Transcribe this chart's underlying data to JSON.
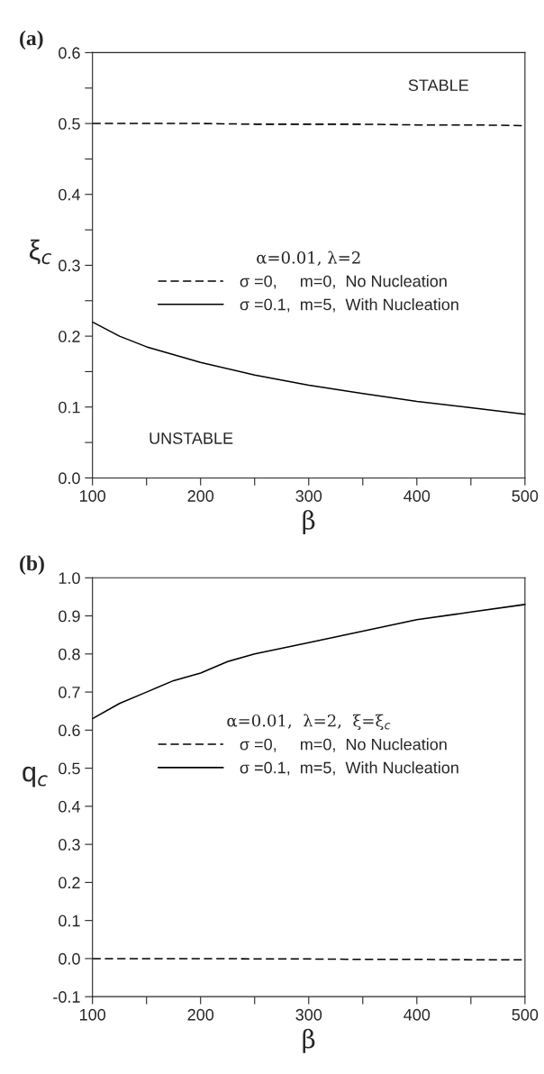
{
  "chart_data": [
    {
      "type": "line",
      "title": "(a)",
      "xlabel": "β",
      "ylabel": "ξ$_{c}$",
      "legend_title": "α=0.01, λ=2",
      "legend": "center",
      "grid": false,
      "x": [
        100,
        125,
        150,
        200,
        250,
        300,
        350,
        400,
        450,
        500
      ],
      "series": [
        {
          "name": "σ =0,     m=0,  No Nucleation",
          "color": "#000000",
          "line_style": "dashed",
          "values": [
            0.5,
            0.5,
            0.5,
            0.5,
            0.499,
            0.499,
            0.499,
            0.498,
            0.498,
            0.497
          ]
        },
        {
          "name": "σ =0.1,  m=5,  With Nucleation",
          "color": "#000000",
          "line_style": "solid",
          "values": [
            0.22,
            0.2,
            0.185,
            0.163,
            0.145,
            0.131,
            0.119,
            0.108,
            0.099,
            0.09
          ]
        }
      ],
      "xlim": [
        100,
        500
      ],
      "ylim": [
        0.0,
        0.6
      ],
      "xticks": [
        100,
        {
          "value": 150,
          "label": null
        },
        200,
        {
          "value": 250,
          "label": null
        },
        300,
        {
          "value": 350,
          "label": null
        },
        400,
        {
          "value": 450,
          "label": null
        },
        500
      ],
      "yticks": [
        {
          "value": 0.0,
          "label": "0.0"
        },
        {
          "value": 0.05,
          "label": null
        },
        0.1,
        {
          "value": 0.15,
          "label": null
        },
        0.2,
        {
          "value": 0.25,
          "label": null
        },
        0.3,
        {
          "value": 0.35,
          "label": null
        },
        0.4,
        {
          "value": 0.45,
          "label": null
        },
        0.5,
        {
          "value": 0.55,
          "label": null
        },
        0.6
      ],
      "annotations": [
        "STABLE",
        "UNSTABLE"
      ]
    },
    {
      "type": "line",
      "title": "(b)",
      "xlabel": "β",
      "ylabel": "q$_{c}$",
      "legend_title": "α=0.01,  λ=2,  ξ=ξ$_{c}$",
      "legend": "center",
      "grid": false,
      "x": [
        100,
        125,
        150,
        175,
        200,
        225,
        250,
        300,
        350,
        400,
        450,
        500
      ],
      "series": [
        {
          "name": "σ =0,     m=0,  No Nucleation",
          "color": "#000000",
          "line_style": "dashed",
          "values": [
            0.0,
            0.0,
            0.0,
            0.0,
            0.0,
            0.0,
            -0.001,
            -0.001,
            -0.002,
            -0.002,
            -0.003,
            -0.003
          ]
        },
        {
          "name": "σ =0.1,  m=5,  With Nucleation",
          "color": "#000000",
          "line_style": "solid",
          "values": [
            0.63,
            0.67,
            0.7,
            0.73,
            0.75,
            0.78,
            0.8,
            0.83,
            0.86,
            0.89,
            0.91,
            0.93
          ]
        }
      ],
      "xlim": [
        100,
        500
      ],
      "ylim": [
        -0.1,
        1.0
      ],
      "xticks": [
        100,
        {
          "value": 150,
          "label": null
        },
        200,
        {
          "value": 250,
          "label": null
        },
        300,
        {
          "value": 350,
          "label": null
        },
        400,
        {
          "value": 450,
          "label": null
        },
        500
      ],
      "yticks": [
        -0.1,
        {
          "value": 0.0,
          "label": "0.0"
        },
        0.1,
        0.2,
        0.3,
        0.4,
        0.5,
        0.6,
        0.7,
        0.8,
        0.9,
        {
          "value": 1.0,
          "label": "1.0"
        }
      ]
    }
  ]
}
